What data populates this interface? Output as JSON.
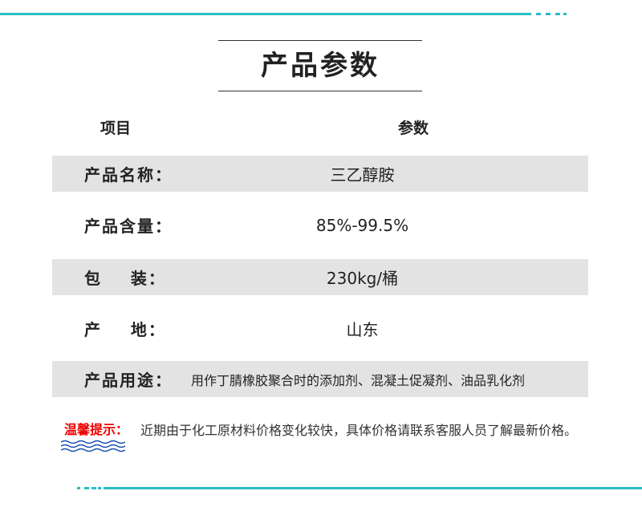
{
  "title": "产品参数",
  "header": {
    "item": "项目",
    "param": "参数"
  },
  "rows": [
    {
      "label": "产品名称：",
      "value": "三乙醇胺"
    },
    {
      "label": "产品含量：",
      "value": "85%-99.5%"
    },
    {
      "label": "包    装：",
      "value": "230kg/桶"
    },
    {
      "label": "产    地：",
      "value": "山东"
    },
    {
      "label": "产品用途：",
      "value": "用作丁腈橡胶聚合时的添加剂、混凝土促凝剂、油品乳化剂"
    }
  ],
  "notice": {
    "label": "温馨提示：",
    "text": "近期由于化工原材料价格变化较快，具体价格请联系客服人员了解最新价格。"
  },
  "colors": {
    "accent": "#2bbcc4",
    "warning": "#e00000",
    "wave": "#1a4fb0",
    "row_bg": "#e3e3e3"
  }
}
